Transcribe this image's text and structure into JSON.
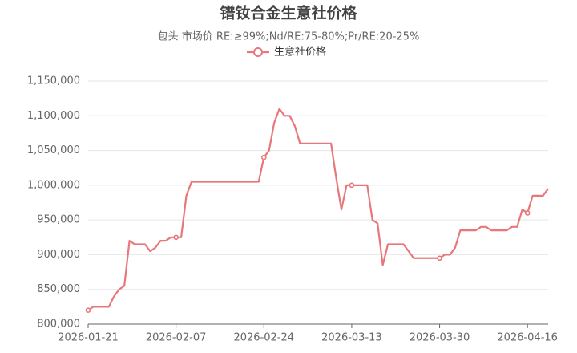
{
  "chart_data": {
    "type": "line",
    "title": "镨钕合金生意社价格",
    "subtitle": "包头 市场价 RE:≥99%;Nd/RE:75-80%;Pr/RE:20-25%",
    "x": [
      "2026-01-21",
      "2026-01-22",
      "2026-01-25",
      "2026-01-26",
      "2026-01-27",
      "2026-01-28",
      "2026-01-29",
      "2026-01-30",
      "2026-02-01",
      "2026-02-02",
      "2026-02-03",
      "2026-02-04",
      "2026-02-05",
      "2026-02-06",
      "2026-02-07",
      "2026-02-08",
      "2026-02-09",
      "2026-02-10",
      "2026-02-23",
      "2026-02-24",
      "2026-02-25",
      "2026-02-26",
      "2026-02-27",
      "2026-02-28",
      "2026-03-01",
      "2026-03-02",
      "2026-03-03",
      "2026-03-09",
      "2026-03-10",
      "2026-03-11",
      "2026-03-12",
      "2026-03-13",
      "2026-03-16",
      "2026-03-17",
      "2026-03-18",
      "2026-03-19",
      "2026-03-20",
      "2026-03-23",
      "2026-03-24",
      "2026-03-25",
      "2026-03-30",
      "2026-03-31",
      "2026-04-01",
      "2026-04-02",
      "2026-04-03",
      "2026-04-06",
      "2026-04-07",
      "2026-04-08",
      "2026-04-09",
      "2026-04-12",
      "2026-04-13",
      "2026-04-14",
      "2026-04-15",
      "2026-04-16",
      "2026-04-17",
      "2026-04-19",
      "2026-04-20"
    ],
    "series": [
      {
        "name": "生意社价格",
        "color": "#e8777c",
        "values": [
          820000,
          825000,
          825000,
          840000,
          850000,
          855000,
          920000,
          915000,
          915000,
          905000,
          910000,
          920000,
          920000,
          925000,
          925000,
          925000,
          985000,
          1005000,
          1005000,
          1040000,
          1050000,
          1090000,
          1110000,
          1100000,
          1100000,
          1085000,
          1060000,
          1060000,
          1010000,
          965000,
          1000000,
          1000000,
          1000000,
          950000,
          945000,
          885000,
          915000,
          915000,
          905000,
          895000,
          895000,
          900000,
          900000,
          910000,
          935000,
          935000,
          940000,
          940000,
          935000,
          935000,
          940000,
          940000,
          965000,
          960000,
          985000,
          985000,
          995000
        ]
      }
    ],
    "xlim": [
      "2026-01-21",
      "2026-04-20"
    ],
    "xticks": [
      "2026-01-21",
      "2026-02-07",
      "2026-02-24",
      "2026-03-13",
      "2026-03-30",
      "2026-04-16"
    ],
    "ylim": [
      800000,
      1150000
    ],
    "yticks": [
      {
        "value": 800000,
        "label": "800,000"
      },
      {
        "value": 850000,
        "label": "850,000"
      },
      {
        "value": 900000,
        "label": "900,000"
      },
      {
        "value": 950000,
        "label": "950,000"
      },
      {
        "value": 1000000,
        "label": "1,000,000"
      },
      {
        "value": 1050000,
        "label": "1,050,000"
      },
      {
        "value": 1100000,
        "label": "1,100,000"
      },
      {
        "value": 1150000,
        "label": "1,150,000"
      }
    ],
    "grid": true,
    "legend": "top"
  }
}
